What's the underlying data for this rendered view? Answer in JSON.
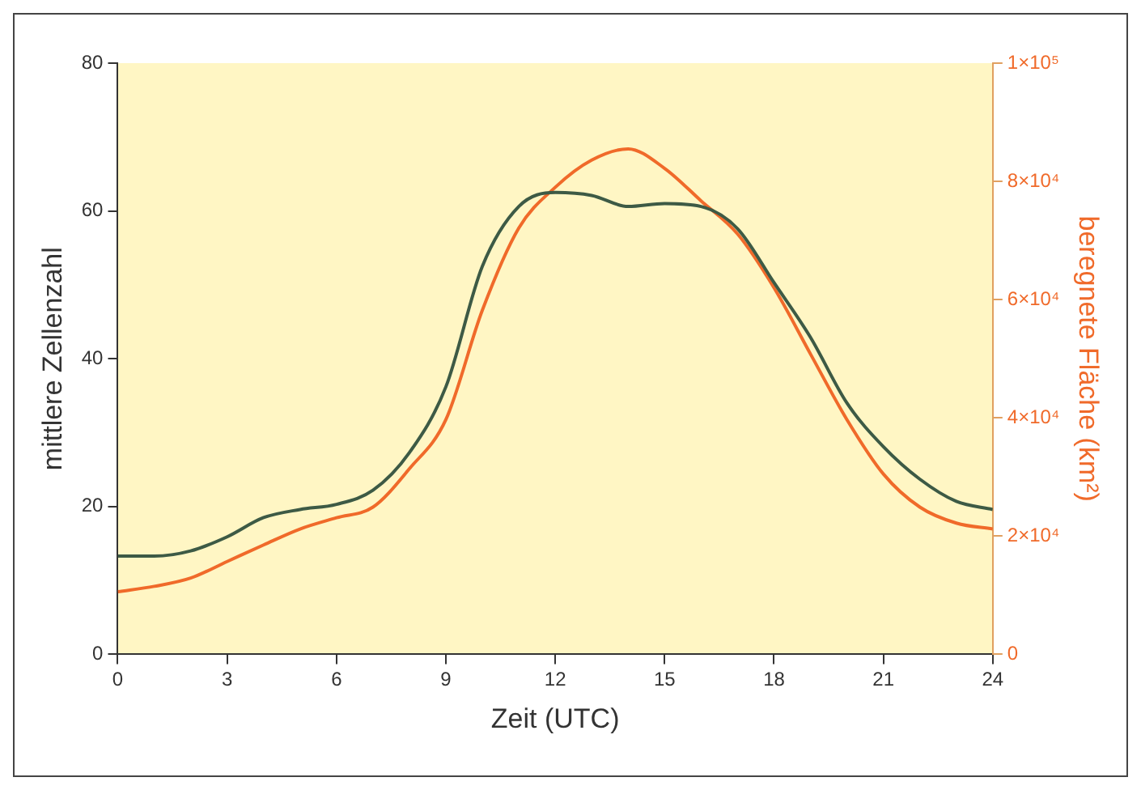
{
  "chart_data": {
    "type": "line",
    "xlabel": "Zeit (UTC)",
    "ylabel": "mittlere Zellenzahl",
    "y2label": "beregnete Fläche (km²)",
    "x": [
      0,
      1,
      2,
      3,
      4,
      5,
      6,
      7,
      8,
      9,
      10,
      11,
      12,
      13,
      14,
      15,
      16,
      17,
      18,
      19,
      20,
      21,
      22,
      23,
      24
    ],
    "series": [
      {
        "color": "#3d5a45",
        "values": [
          13.3,
          13.3,
          14.0,
          15.9,
          18.5,
          19.6,
          20.3,
          22.2,
          27.3,
          36.2,
          52.5,
          60.6,
          62.5,
          62.1,
          60.6,
          61.0,
          60.6,
          57.6,
          50.3,
          42.9,
          34.0,
          28.1,
          23.7,
          20.7,
          19.6
        ]
      },
      {
        "color": "#f06a2a",
        "axis": "y2",
        "values": [
          10600,
          11500,
          12900,
          15700,
          18500,
          21200,
          23100,
          24900,
          31400,
          39700,
          58200,
          72100,
          79000,
          83600,
          85500,
          82200,
          76700,
          71100,
          62000,
          50800,
          39700,
          30500,
          24900,
          22200,
          21200
        ]
      }
    ],
    "xlim": [
      0,
      24
    ],
    "xticks": [
      0,
      3,
      6,
      9,
      12,
      15,
      18,
      21,
      24
    ],
    "ylim": [
      0,
      80
    ],
    "yticks": [
      0,
      20,
      40,
      60,
      80
    ],
    "y2lim": [
      0,
      100000
    ],
    "y2ticks": [
      0,
      {
        "value": 20000,
        "label": "2×10⁴"
      },
      {
        "value": 40000,
        "label": "4×10⁴"
      },
      {
        "value": 60000,
        "label": "6×10⁴"
      },
      {
        "value": 80000,
        "label": "8×10⁴"
      },
      {
        "value": 100000,
        "label": "1×10⁵"
      }
    ],
    "grid": false,
    "legend": false,
    "marker": "none",
    "line_style": "solid"
  }
}
